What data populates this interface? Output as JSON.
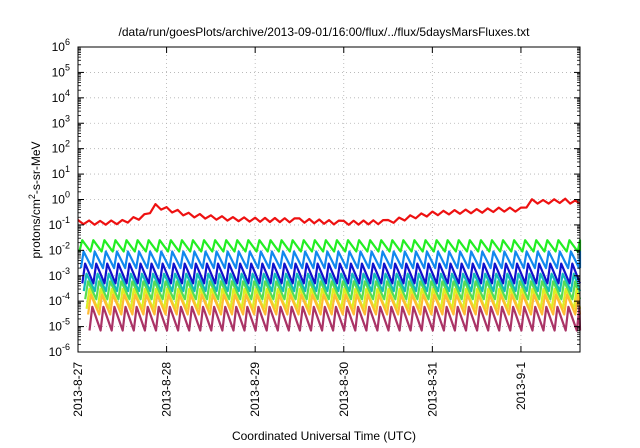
{
  "chart_data": {
    "type": "line",
    "title": "/data/run/goesPlots/archive/2013-09-01/16:00/flux/../flux/5daysMarsFluxes.txt",
    "xlabel": "Coordinated Universal Time (UTC)",
    "ylabel": {
      "prefix": "protons/cm",
      "superscript": "2",
      "suffix": "-s-sr-MeV"
    },
    "yscale": "log",
    "ylim_exponents": [
      -6,
      6
    ],
    "y_ticks": [
      {
        "base": "10",
        "exp": "6"
      },
      {
        "base": "10",
        "exp": "5"
      },
      {
        "base": "10",
        "exp": "4"
      },
      {
        "base": "10",
        "exp": "3"
      },
      {
        "base": "10",
        "exp": "2"
      },
      {
        "base": "10",
        "exp": "1"
      },
      {
        "base": "10",
        "exp": "0"
      },
      {
        "base": "10",
        "exp": "-1"
      },
      {
        "base": "10",
        "exp": "-2"
      },
      {
        "base": "10",
        "exp": "-3"
      },
      {
        "base": "10",
        "exp": "-4"
      },
      {
        "base": "10",
        "exp": "-5"
      },
      {
        "base": "10",
        "exp": "-6"
      }
    ],
    "xlim": [
      "2013-08-27T00:00",
      "2013-09-01T16:00"
    ],
    "x_ticks": [
      "2013-8-27",
      "2013-8-28",
      "2013-8-29",
      "2013-8-30",
      "2013-8-31",
      "2013-9-1"
    ],
    "grid": true,
    "legend": "none",
    "series": [
      {
        "color": "#ee1111",
        "pattern": "gradual",
        "points": [
          [
            "2013-08-27T00:00",
            0.13
          ],
          [
            "2013-08-27T06:00",
            0.12
          ],
          [
            "2013-08-27T12:00",
            0.13
          ],
          [
            "2013-08-27T18:00",
            0.22
          ],
          [
            "2013-08-27T21:00",
            0.55
          ],
          [
            "2013-08-28T00:00",
            0.42
          ],
          [
            "2013-08-28T06:00",
            0.25
          ],
          [
            "2013-08-28T12:00",
            0.2
          ],
          [
            "2013-08-28T18:00",
            0.17
          ],
          [
            "2013-08-29T00:00",
            0.16
          ],
          [
            "2013-08-29T12:00",
            0.15
          ],
          [
            "2013-08-30T00:00",
            0.12
          ],
          [
            "2013-08-30T12:00",
            0.13
          ],
          [
            "2013-08-30T18:00",
            0.2
          ],
          [
            "2013-08-31T00:00",
            0.28
          ],
          [
            "2013-08-31T06:00",
            0.32
          ],
          [
            "2013-08-31T12:00",
            0.35
          ],
          [
            "2013-08-31T18:00",
            0.4
          ],
          [
            "2013-09-01T00:00",
            0.4
          ],
          [
            "2013-09-01T03:00",
            0.85
          ],
          [
            "2013-09-01T06:00",
            0.8
          ],
          [
            "2013-09-01T12:00",
            0.9
          ],
          [
            "2013-09-01T16:00",
            0.7
          ]
        ]
      },
      {
        "color": "#22ee22",
        "pattern": "sawtooth",
        "peak": 0.025,
        "trough": 0.009
      },
      {
        "color": "#1188ee",
        "pattern": "sawtooth",
        "peak": 0.009,
        "trough": 0.002
      },
      {
        "color": "#1111cc",
        "pattern": "sawtooth",
        "peak": 0.003,
        "trough": 0.0005
      },
      {
        "color": "#11bbbb",
        "pattern": "sawtooth",
        "peak": 0.0012,
        "trough": 0.00025
      },
      {
        "color": "#55dd55",
        "pattern": "sawtooth",
        "peak": 0.0006,
        "trough": 0.00012
      },
      {
        "color": "#ddee22",
        "pattern": "sawtooth",
        "peak": 0.0003,
        "trough": 5e-05
      },
      {
        "color": "#ffbb33",
        "pattern": "sawtooth",
        "peak": 0.00018,
        "trough": 3e-05
      },
      {
        "color": "#aa3366",
        "pattern": "sawtooth",
        "peak": 6e-05,
        "trough": 7e-06
      }
    ]
  }
}
